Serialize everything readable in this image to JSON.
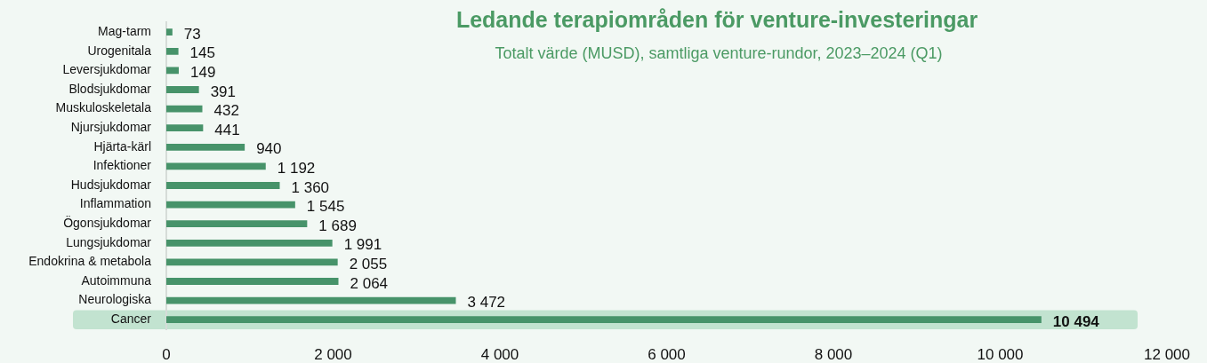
{
  "chart_data": {
    "type": "bar",
    "orientation": "horizontal",
    "title": "Ledande terapiområden för venture-investeringar",
    "subtitle": "Totalt värde (MUSD), samtliga venture-rundor, 2023–2024 (Q1)",
    "categories": [
      "Mag-tarm",
      "Urogenitala",
      "Leversjukdomar",
      "Blodsjukdomar",
      "Muskuloskeletala",
      "Njursjukdomar",
      "Hjärta-kärl",
      "Infektioner",
      "Hudsjukdomar",
      "Inflammation",
      "Ögonsjukdomar",
      "Lungsjukdomar",
      "Endokrina & metabola",
      "Autoimmuna",
      "Neurologiska",
      "Cancer"
    ],
    "values": [
      73,
      145,
      149,
      391,
      432,
      441,
      940,
      1192,
      1360,
      1545,
      1689,
      1991,
      2055,
      2064,
      3472,
      10494
    ],
    "value_labels": [
      "73",
      "145",
      "149",
      "391",
      "432",
      "441",
      "940",
      "1 192",
      "1 360",
      "1 545",
      "1 689",
      "1 991",
      "2 055",
      "2 064",
      "3 472",
      "10 494"
    ],
    "color": "#47936a",
    "xlim": [
      0,
      12000
    ],
    "xticks": [
      0,
      {
        "value": 2000,
        "label": "2 000"
      },
      {
        "value": 4000,
        "label": "4 000"
      },
      {
        "value": 6000,
        "label": "6 000"
      },
      {
        "value": 8000,
        "label": "8 000"
      },
      {
        "value": 10000,
        "label": "10 000"
      },
      {
        "value": 12000,
        "label": "12 000"
      }
    ],
    "bands": [
      {
        "axis": "y",
        "from": "Cancer",
        "to": "Cancer",
        "color": "#c2e3d0"
      }
    ],
    "grid": false,
    "legend": false
  }
}
